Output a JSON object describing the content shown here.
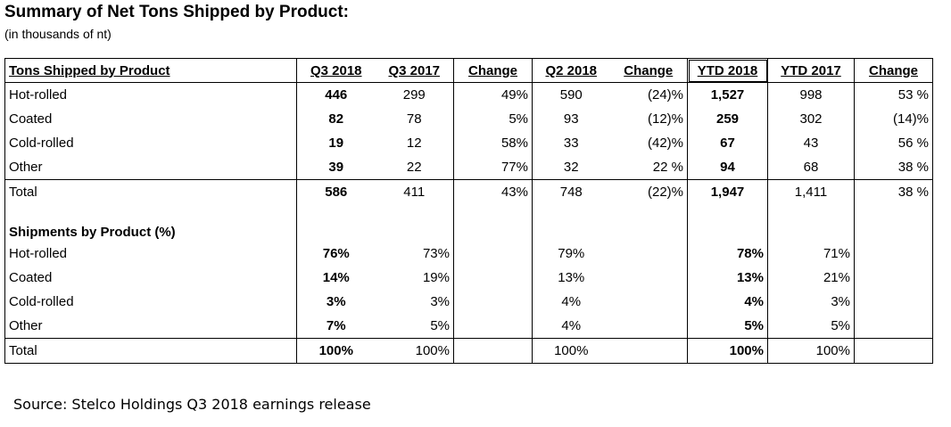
{
  "title": "Summary of Net Tons Shipped by Product:",
  "subtitle": "(in thousands of nt)",
  "table": {
    "header": [
      "Tons Shipped by Product",
      "Q3 2018",
      "Q3 2017",
      "Change",
      "Q2 2018",
      "Change",
      "YTD 2018",
      "YTD 2017",
      "Change"
    ],
    "tons": {
      "rows": [
        [
          "Hot-rolled",
          "446",
          "299",
          "49%",
          "590",
          "(24)%",
          "1,527",
          "998",
          "53 %"
        ],
        [
          "Coated",
          "82",
          "78",
          "5%",
          "93",
          "(12)%",
          "259",
          "302",
          "(14)%"
        ],
        [
          "Cold-rolled",
          "19",
          "12",
          "58%",
          "33",
          "(42)%",
          "67",
          "43",
          "56 %"
        ],
        [
          "Other",
          "39",
          "22",
          "77%",
          "32",
          "22 %",
          "94",
          "68",
          "38 %"
        ],
        [
          "Total",
          "586",
          "411",
          "43%",
          "748",
          "(22)%",
          "1,947",
          "1,411",
          "38 %"
        ]
      ]
    },
    "shares": {
      "heading": "Shipments by Product (%)",
      "rows": [
        [
          "Hot-rolled",
          "76%",
          "73%",
          null,
          "79%",
          null,
          "78%",
          "71%",
          null
        ],
        [
          "Coated",
          "14%",
          "19%",
          null,
          "13%",
          null,
          "13%",
          "21%",
          null
        ],
        [
          "Cold-rolled",
          "3%",
          "3%",
          null,
          "4%",
          null,
          "4%",
          "3%",
          null
        ],
        [
          "Other",
          "7%",
          "5%",
          null,
          "4%",
          null,
          "5%",
          "5%",
          null
        ],
        [
          "Total",
          "100%",
          "100%",
          null,
          "100%",
          null,
          "100%",
          "100%",
          null
        ]
      ]
    }
  },
  "source": "Source: Stelco Holdings Q3 2018 earnings release"
}
